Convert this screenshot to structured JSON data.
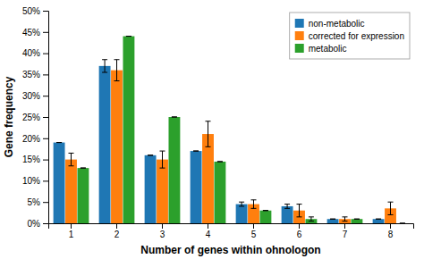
{
  "chart_data": {
    "type": "bar",
    "x_label": "Number of genes within ohnologon",
    "y_label": "Gene frequency",
    "categories": [
      "1",
      "2",
      "3",
      "4",
      "5",
      "6",
      "7",
      "8"
    ],
    "series": [
      {
        "name": "non-metabolic",
        "values": [
          19.0,
          37.0,
          16.0,
          17.0,
          4.5,
          4.0,
          1.0,
          1.0
        ],
        "errors": [
          0.0,
          1.5,
          0.0,
          0.0,
          0.5,
          0.5,
          0.0,
          0.0
        ]
      },
      {
        "name": "corrected for expression",
        "values": [
          15.0,
          36.0,
          15.0,
          21.0,
          4.5,
          3.0,
          1.0,
          3.5
        ],
        "errors": [
          1.5,
          2.5,
          2.0,
          3.0,
          1.0,
          1.5,
          0.5,
          1.5
        ]
      },
      {
        "name": "metabolic",
        "values": [
          13.0,
          44.0,
          25.0,
          14.5,
          3.0,
          1.0,
          1.0,
          0.0
        ],
        "errors": [
          0.0,
          0.0,
          0.0,
          0.0,
          0.0,
          0.5,
          0.0,
          0.0
        ]
      }
    ],
    "ylim": [
      0,
      50
    ],
    "yticks": [
      {
        "value": 0,
        "label": "0%"
      },
      {
        "value": 5,
        "label": "5%"
      },
      {
        "value": 10,
        "label": "10%"
      },
      {
        "value": 15,
        "label": "15%"
      },
      {
        "value": 20,
        "label": "20%"
      },
      {
        "value": 25,
        "label": "25%"
      },
      {
        "value": 30,
        "label": "30%"
      },
      {
        "value": 35,
        "label": "35%"
      },
      {
        "value": 40,
        "label": "40%"
      },
      {
        "value": 45,
        "label": "45%"
      },
      {
        "value": 50,
        "label": "50%"
      }
    ],
    "grid": false,
    "legend": "upper right"
  }
}
